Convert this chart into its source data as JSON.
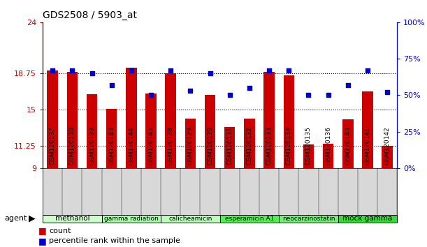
{
  "title": "GDS2508 / 5903_at",
  "samples": [
    "GSM120137",
    "GSM120138",
    "GSM120139",
    "GSM120143",
    "GSM120144",
    "GSM120145",
    "GSM120128",
    "GSM120129",
    "GSM120130",
    "GSM120131",
    "GSM120132",
    "GSM120133",
    "GSM120134",
    "GSM120135",
    "GSM120136",
    "GSM120140",
    "GSM120141",
    "GSM120142"
  ],
  "bar_values": [
    19.0,
    18.9,
    16.6,
    15.1,
    19.3,
    16.7,
    18.75,
    14.1,
    16.5,
    13.2,
    14.1,
    18.9,
    18.5,
    11.4,
    11.5,
    14.0,
    16.9,
    11.3
  ],
  "dot_pct": [
    67,
    67,
    65,
    57,
    67,
    50,
    67,
    53,
    65,
    50,
    55,
    67,
    67,
    50,
    50,
    57,
    67,
    52
  ],
  "groups": [
    {
      "label": "methanol",
      "start": 0,
      "end": 3,
      "color": "#ccffcc"
    },
    {
      "label": "gamma radiation",
      "start": 3,
      "end": 6,
      "color": "#aaffaa"
    },
    {
      "label": "calicheamicin",
      "start": 6,
      "end": 9,
      "color": "#bbffbb"
    },
    {
      "label": "esperamicin A1",
      "start": 9,
      "end": 12,
      "color": "#55ee55"
    },
    {
      "label": "neocarzinostatin",
      "start": 12,
      "end": 15,
      "color": "#77ee77"
    },
    {
      "label": "mock gamma",
      "start": 15,
      "end": 18,
      "color": "#33dd33"
    }
  ],
  "bar_color": "#cc0000",
  "dot_color": "#0000cc",
  "ylim_left": [
    9,
    24
  ],
  "ylim_right": [
    0,
    100
  ],
  "yticks_left": [
    9,
    11.25,
    15,
    18.75,
    24
  ],
  "ytick_labels_left": [
    "9",
    "11.25",
    "15",
    "18.75",
    "24"
  ],
  "ytick_labels_right": [
    "0%",
    "25%",
    "50%",
    "75%",
    "100%"
  ],
  "left_color": "#cc0000",
  "right_color": "#0000cc",
  "bg_color": "#ffffff",
  "xtick_bg": "#d8d8d8",
  "agent_label": "agent",
  "legend_count_label": "count",
  "legend_pct_label": "percentile rank within the sample"
}
